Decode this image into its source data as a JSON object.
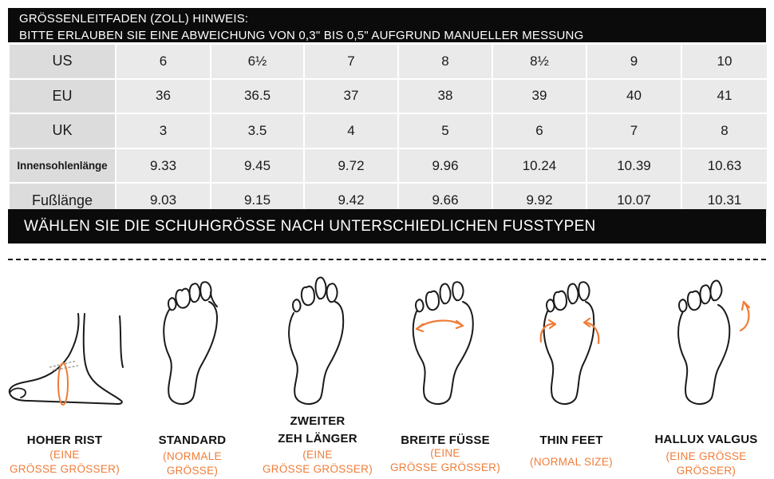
{
  "notice": {
    "line1": "GRÖSSENLEITFADEN (ZOLL) HINWEIS:",
    "line2": "BITTE ERLAUBEN SIE EINE ABWEICHUNG VON 0,3\" BIS 0,5\" AUFGRUND MANUELLER MESSUNG"
  },
  "size_table": {
    "rows": [
      {
        "label": "US",
        "values": [
          "6",
          "6½",
          "7",
          "8",
          "8½",
          "9",
          "10"
        ]
      },
      {
        "label": "EU",
        "values": [
          "36",
          "36.5",
          "37",
          "38",
          "39",
          "40",
          "41"
        ]
      },
      {
        "label": "UK",
        "values": [
          "3",
          "3.5",
          "4",
          "5",
          "6",
          "7",
          "8"
        ]
      },
      {
        "label": "Innensohlenlänge",
        "values": [
          "9.33",
          "9.45",
          "9.72",
          "9.96",
          "10.24",
          "10.39",
          "10.63"
        ]
      },
      {
        "label": "Fußlänge",
        "values": [
          "9.03",
          "9.15",
          "9.42",
          "9.66",
          "9.92",
          "10.07",
          "10.31"
        ]
      }
    ]
  },
  "choose_banner": "WÄHLEN SIE DIE SCHUHGRÖSSE NACH UNTERSCHIEDLICHEN FUSSTYPEN",
  "colors": {
    "accent": "#f07c37",
    "banner": "#0b0b0b",
    "cell": "#eaeaea"
  },
  "foot_types": [
    {
      "icon": "high-instep-foot-icon",
      "title": "HOHER RIST",
      "note": "(EINE\nGRÖSSE GRÖSSER)"
    },
    {
      "icon": "standard-foot-icon",
      "title": "STANDARD",
      "note": "(NORMALE\nGRÖSSE)"
    },
    {
      "icon": "long-second-toe-foot-icon",
      "title": "ZWEITER\nZEH LÄNGER",
      "note": "(EINE\nGRÖSSE GRÖSSER)"
    },
    {
      "icon": "wide-foot-icon",
      "title": "BREITE FÜSSE",
      "note": "(EINE\nGRÖSSE GRÖSSER)"
    },
    {
      "icon": "thin-foot-icon",
      "title": "THIN FEET",
      "note": "(NORMAL SIZE)"
    },
    {
      "icon": "hallux-valgus-foot-icon",
      "title": "HALLUX VALGUS",
      "note": "(EINE GRÖSSE\nGRÖSSER)"
    }
  ]
}
